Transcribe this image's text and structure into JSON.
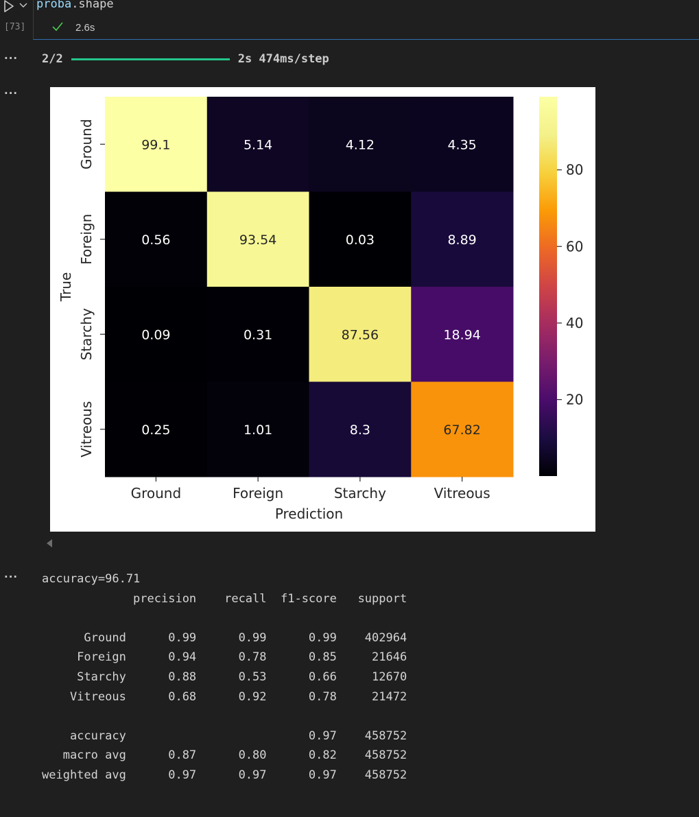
{
  "cell": {
    "code_var": "proba",
    "code_rest": ".shape",
    "execution_count": "[73]",
    "exec_time": "2.6s"
  },
  "output_more": "···",
  "progress": {
    "step": "2/2",
    "fraction": 1.0,
    "timing": "2s 474ms/step",
    "color": "#23c58a"
  },
  "chart_data": {
    "type": "heatmap",
    "xlabel": "Prediction",
    "ylabel": "True",
    "x_categories": [
      "Ground",
      "Foreign",
      "Starchy",
      "Vitreous"
    ],
    "y_categories": [
      "Ground",
      "Foreign",
      "Starchy",
      "Vitreous"
    ],
    "values": [
      [
        99.1,
        5.14,
        4.12,
        4.35
      ],
      [
        0.56,
        93.54,
        0.03,
        8.89
      ],
      [
        0.09,
        0.31,
        87.56,
        18.94
      ],
      [
        0.25,
        1.01,
        8.3,
        67.82
      ]
    ],
    "labels": [
      [
        "99.1",
        "5.14",
        "4.12",
        "4.35"
      ],
      [
        "0.56",
        "93.54",
        "0.03",
        "8.89"
      ],
      [
        "0.09",
        "0.31",
        "87.56",
        "18.94"
      ],
      [
        "0.25",
        "1.01",
        "8.3",
        "67.82"
      ]
    ],
    "colormap": "inferno",
    "vmin": 0.03,
    "vmax": 99.1,
    "colorbar_ticks": [
      20,
      40,
      60,
      80
    ]
  },
  "report": {
    "accuracy_line": "accuracy=96.71",
    "header": [
      "precision",
      "recall",
      "f1-score",
      "support"
    ],
    "rows": [
      {
        "label": "Ground",
        "precision": "0.99",
        "recall": "0.99",
        "f1": "0.99",
        "support": "402964"
      },
      {
        "label": "Foreign",
        "precision": "0.94",
        "recall": "0.78",
        "f1": "0.85",
        "support": "21646"
      },
      {
        "label": "Starchy",
        "precision": "0.88",
        "recall": "0.53",
        "f1": "0.66",
        "support": "12670"
      },
      {
        "label": "Vitreous",
        "precision": "0.68",
        "recall": "0.92",
        "f1": "0.78",
        "support": "21472"
      }
    ],
    "summary": [
      {
        "label": "accuracy",
        "precision": "",
        "recall": "",
        "f1": "0.97",
        "support": "458752"
      },
      {
        "label": "macro avg",
        "precision": "0.87",
        "recall": "0.80",
        "f1": "0.82",
        "support": "458752"
      },
      {
        "label": "weighted avg",
        "precision": "0.97",
        "recall": "0.97",
        "f1": "0.97",
        "support": "458752"
      }
    ]
  }
}
